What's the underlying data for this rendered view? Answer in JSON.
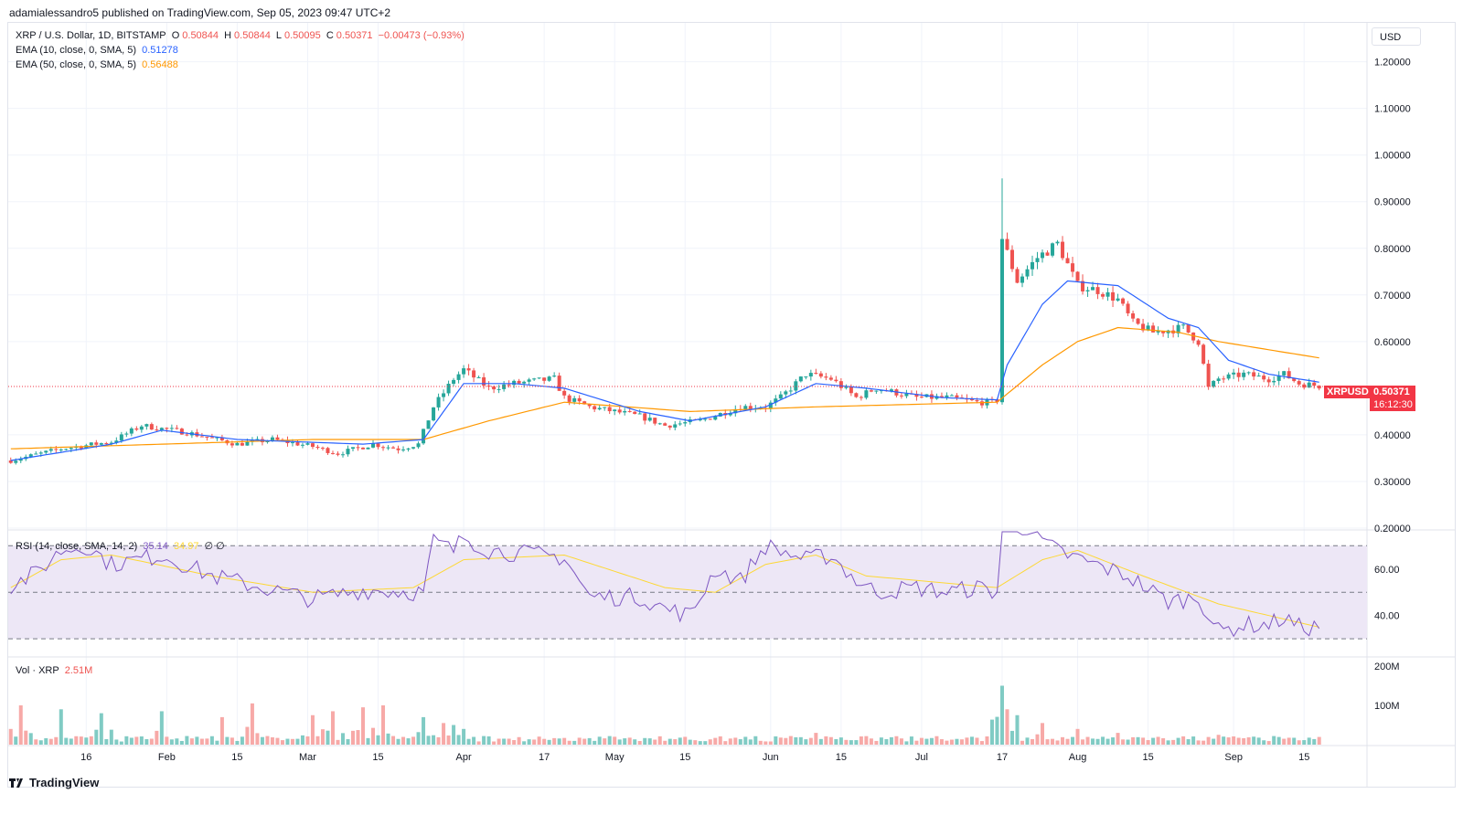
{
  "header": {
    "published": "adamialessandro5 published on TradingView.com, Sep 05, 2023 09:47 UTC+2"
  },
  "legend": {
    "symbol": "XRP / U.S. Dollar, 1D, BITSTAMP",
    "o_label": "O",
    "o": "0.50844",
    "h_label": "H",
    "h": "0.50844",
    "l_label": "L",
    "l": "0.50095",
    "c_label": "C",
    "c": "0.50371",
    "change": "−0.00473 (−0.93%)",
    "ema10_label": "EMA (10, close, 0, SMA, 5)",
    "ema10_value": "0.51278",
    "ema50_label": "EMA (50, close, 0, SMA, 5)",
    "ema50_value": "0.56488",
    "rsi_label": "RSI (14, close, SMA, 14, 2)",
    "rsi_value": "35.14",
    "rsi_sma_value": "34.97",
    "rsi_extra": "∅ ∅",
    "vol_label": "Vol · XRP",
    "vol_value": "2.51M"
  },
  "currency_button": "USD",
  "last_price": {
    "symbol": "XRPUSD",
    "price": "0.50371",
    "countdown": "16:12:30"
  },
  "footer": {
    "brand": "TradingView"
  },
  "colors": {
    "up": "#26a69a",
    "down": "#ef5350",
    "ema10": "#2962ff",
    "ema50": "#ff9800",
    "rsi": "#7e57c2",
    "rsi_sma": "#fdd835",
    "price_label": "#f23645",
    "rsi_band": "#ede7f6"
  },
  "chart_data": {
    "type": "candlestick",
    "price_axis": {
      "ticks": [
        "1.20000",
        "1.10000",
        "1.00000",
        "0.90000",
        "0.80000",
        "0.70000",
        "0.60000",
        "0.40000",
        "0.30000",
        "0.20000"
      ],
      "range": [
        0.2,
        1.26
      ]
    },
    "rsi_axis": {
      "ticks": [
        "60.00",
        "40.00"
      ],
      "range": [
        23,
        76
      ],
      "bands": [
        70,
        50,
        30
      ]
    },
    "volume_axis": {
      "ticks": [
        "200M",
        "100M"
      ],
      "max": 200
    },
    "x_axis": {
      "labels": [
        "16",
        "Feb",
        "15",
        "Mar",
        "15",
        "Apr",
        "17",
        "May",
        "15",
        "Jun",
        "15",
        "Jul",
        "17",
        "Aug",
        "15",
        "Sep",
        "15"
      ],
      "label_days": [
        15,
        31,
        45,
        59,
        73,
        90,
        106,
        120,
        134,
        151,
        165,
        181,
        197,
        212,
        226,
        243,
        257
      ]
    },
    "days_shown": 270,
    "price_anchors": [
      [
        0,
        0.345
      ],
      [
        10,
        0.37
      ],
      [
        20,
        0.385
      ],
      [
        26,
        0.42
      ],
      [
        35,
        0.405
      ],
      [
        45,
        0.38
      ],
      [
        52,
        0.39
      ],
      [
        60,
        0.375
      ],
      [
        65,
        0.36
      ],
      [
        72,
        0.38
      ],
      [
        77,
        0.37
      ],
      [
        81,
        0.38
      ],
      [
        84,
        0.46
      ],
      [
        86,
        0.49
      ],
      [
        88,
        0.52
      ],
      [
        90,
        0.54
      ],
      [
        95,
        0.5
      ],
      [
        100,
        0.51
      ],
      [
        108,
        0.52
      ],
      [
        110,
        0.48
      ],
      [
        115,
        0.46
      ],
      [
        125,
        0.44
      ],
      [
        130,
        0.42
      ],
      [
        137,
        0.43
      ],
      [
        145,
        0.46
      ],
      [
        150,
        0.46
      ],
      [
        153,
        0.48
      ],
      [
        158,
        0.53
      ],
      [
        163,
        0.52
      ],
      [
        168,
        0.48
      ],
      [
        172,
        0.5
      ],
      [
        180,
        0.48
      ],
      [
        186,
        0.48
      ],
      [
        192,
        0.47
      ],
      [
        196,
        0.47
      ],
      [
        197,
        0.82
      ],
      [
        200,
        0.73
      ],
      [
        204,
        0.78
      ],
      [
        208,
        0.81
      ],
      [
        212,
        0.72
      ],
      [
        216,
        0.71
      ],
      [
        220,
        0.69
      ],
      [
        223,
        0.64
      ],
      [
        227,
        0.62
      ],
      [
        233,
        0.63
      ],
      [
        236,
        0.6
      ],
      [
        238,
        0.5
      ],
      [
        240,
        0.52
      ],
      [
        245,
        0.53
      ],
      [
        250,
        0.52
      ],
      [
        253,
        0.53
      ],
      [
        256,
        0.51
      ],
      [
        260,
        0.505
      ]
    ],
    "ema10_anchors": [
      [
        0,
        0.345
      ],
      [
        20,
        0.38
      ],
      [
        30,
        0.41
      ],
      [
        45,
        0.39
      ],
      [
        70,
        0.38
      ],
      [
        82,
        0.39
      ],
      [
        90,
        0.51
      ],
      [
        100,
        0.51
      ],
      [
        110,
        0.5
      ],
      [
        125,
        0.45
      ],
      [
        135,
        0.43
      ],
      [
        150,
        0.46
      ],
      [
        160,
        0.51
      ],
      [
        170,
        0.5
      ],
      [
        185,
        0.48
      ],
      [
        196,
        0.475
      ],
      [
        198,
        0.55
      ],
      [
        205,
        0.68
      ],
      [
        210,
        0.73
      ],
      [
        220,
        0.72
      ],
      [
        230,
        0.65
      ],
      [
        236,
        0.63
      ],
      [
        242,
        0.56
      ],
      [
        250,
        0.53
      ],
      [
        260,
        0.513
      ]
    ],
    "ema50_anchors": [
      [
        0,
        0.37
      ],
      [
        30,
        0.38
      ],
      [
        60,
        0.39
      ],
      [
        82,
        0.39
      ],
      [
        95,
        0.43
      ],
      [
        110,
        0.47
      ],
      [
        135,
        0.45
      ],
      [
        160,
        0.46
      ],
      [
        196,
        0.47
      ],
      [
        205,
        0.55
      ],
      [
        212,
        0.6
      ],
      [
        220,
        0.63
      ],
      [
        232,
        0.62
      ],
      [
        240,
        0.6
      ],
      [
        260,
        0.565
      ]
    ],
    "rsi_anchors": [
      [
        0,
        53
      ],
      [
        5,
        58
      ],
      [
        10,
        68
      ],
      [
        15,
        70
      ],
      [
        20,
        62
      ],
      [
        30,
        66
      ],
      [
        40,
        57
      ],
      [
        50,
        52
      ],
      [
        60,
        47
      ],
      [
        70,
        51
      ],
      [
        82,
        50
      ],
      [
        84,
        72
      ],
      [
        88,
        68
      ],
      [
        90,
        74
      ],
      [
        95,
        68
      ],
      [
        105,
        66
      ],
      [
        110,
        65
      ],
      [
        115,
        48
      ],
      [
        125,
        48
      ],
      [
        130,
        43
      ],
      [
        135,
        40
      ],
      [
        140,
        60
      ],
      [
        145,
        55
      ],
      [
        150,
        70
      ],
      [
        158,
        64
      ],
      [
        163,
        66
      ],
      [
        168,
        55
      ],
      [
        172,
        50
      ],
      [
        180,
        52
      ],
      [
        186,
        50
      ],
      [
        192,
        52
      ],
      [
        196,
        50
      ],
      [
        197,
        78
      ],
      [
        202,
        78
      ],
      [
        206,
        70
      ],
      [
        210,
        66
      ],
      [
        222,
        57
      ],
      [
        230,
        46
      ],
      [
        236,
        48
      ],
      [
        240,
        33
      ],
      [
        245,
        36
      ],
      [
        250,
        36
      ],
      [
        253,
        39
      ],
      [
        256,
        35
      ],
      [
        260,
        35
      ]
    ],
    "rsi_sma_anchors": [
      [
        0,
        52
      ],
      [
        10,
        64
      ],
      [
        20,
        66
      ],
      [
        40,
        57
      ],
      [
        60,
        50
      ],
      [
        80,
        52
      ],
      [
        90,
        64
      ],
      [
        110,
        66
      ],
      [
        130,
        52
      ],
      [
        140,
        50
      ],
      [
        150,
        62
      ],
      [
        160,
        66
      ],
      [
        170,
        57
      ],
      [
        196,
        52
      ],
      [
        205,
        64
      ],
      [
        212,
        68
      ],
      [
        225,
        57
      ],
      [
        240,
        45
      ],
      [
        250,
        40
      ],
      [
        260,
        35
      ]
    ],
    "volume_spikes": [
      [
        0,
        40
      ],
      [
        2,
        100
      ],
      [
        10,
        90
      ],
      [
        18,
        80
      ],
      [
        30,
        85
      ],
      [
        42,
        70
      ],
      [
        48,
        105
      ],
      [
        60,
        75
      ],
      [
        64,
        85
      ],
      [
        70,
        95
      ],
      [
        74,
        100
      ],
      [
        82,
        70
      ],
      [
        86,
        55
      ],
      [
        88,
        50
      ],
      [
        90,
        40
      ],
      [
        120,
        20
      ],
      [
        160,
        30
      ],
      [
        197,
        150
      ],
      [
        198,
        90
      ],
      [
        200,
        75
      ],
      [
        205,
        55
      ],
      [
        212,
        40
      ],
      [
        220,
        30
      ],
      [
        240,
        25
      ]
    ]
  }
}
